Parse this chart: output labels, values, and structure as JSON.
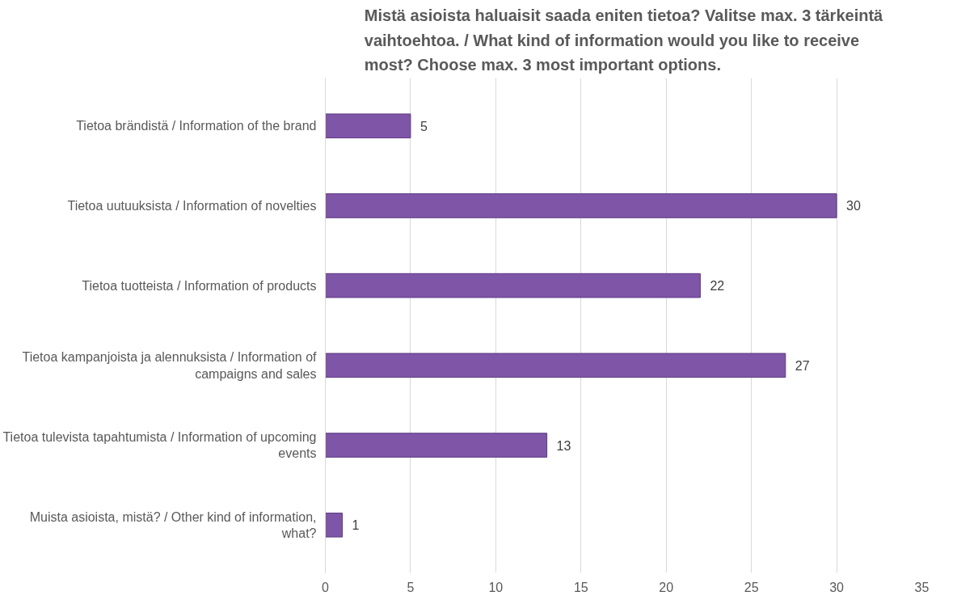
{
  "chart_data": {
    "type": "bar",
    "orientation": "horizontal",
    "title": "Mistä asioista haluaisit saada eniten tietoa? Valitse max. 3 tärkeintä vaihtoehtoa. / What kind of information would you like to receive most? Choose max. 3 most important options.",
    "categories": [
      "Tietoa brändistä / Information of the brand",
      "Tietoa uutuuksista / Information of novelties",
      "Tietoa tuotteista / Information of products",
      "Tietoa kampanjoista ja alennuksista / Information of campaigns and sales",
      "Tietoa tulevista tapahtumista / Information of upcoming events",
      "Muista asioista, mistä? / Other kind of information, what?"
    ],
    "values": [
      5,
      30,
      22,
      27,
      13,
      1
    ],
    "color": "#7f55a8",
    "xlim": [
      0,
      35
    ],
    "xticks": [
      0,
      5,
      10,
      15,
      20,
      25,
      30,
      35
    ],
    "grid": "x",
    "data_labels": true
  }
}
